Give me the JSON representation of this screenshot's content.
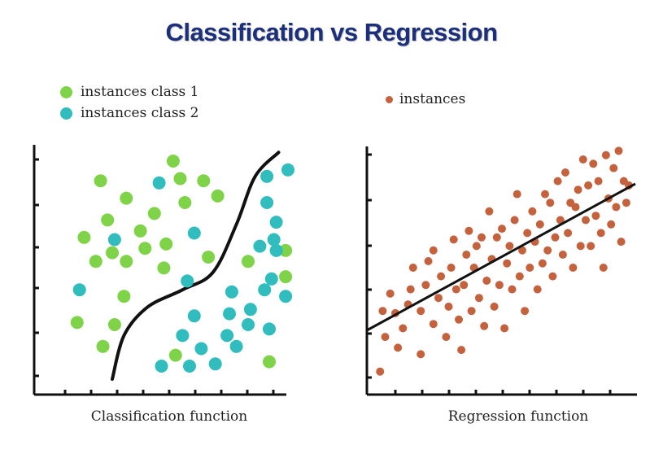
{
  "page": {
    "title": "Classification vs Regression"
  },
  "colors": {
    "class1": "#7ed348",
    "class2": "#31bdbd",
    "instances": "#c4623e",
    "title": "#1c2f7a",
    "axis": "#111111"
  },
  "chart_data": [
    {
      "type": "scatter",
      "xlabel": "Classification function",
      "xlim": [
        0,
        100
      ],
      "ylim": [
        0,
        100
      ],
      "legend_position": "top-left",
      "legend": [
        {
          "label": "instances class 1",
          "color": "#7ed348"
        },
        {
          "label": "instances class 2",
          "color": "#31bdbd"
        }
      ],
      "series": [
        {
          "name": "instances class 1",
          "color": "#7ed348",
          "points": [
            [
              51,
              97
            ],
            [
              20,
              88
            ],
            [
              54,
              89
            ],
            [
              64,
              88
            ],
            [
              31,
              80
            ],
            [
              56,
              78
            ],
            [
              70,
              81
            ],
            [
              43,
              73
            ],
            [
              23,
              70
            ],
            [
              37,
              65
            ],
            [
              13,
              62
            ],
            [
              48,
              59
            ],
            [
              39,
              57
            ],
            [
              25,
              55
            ],
            [
              66,
              53
            ],
            [
              18,
              51
            ],
            [
              31,
              51
            ],
            [
              47,
              48
            ],
            [
              83,
              51
            ],
            [
              99,
              56
            ],
            [
              99,
              44
            ],
            [
              30,
              35
            ],
            [
              26,
              22
            ],
            [
              10,
              23
            ],
            [
              21,
              12
            ],
            [
              52,
              8
            ],
            [
              92,
              5
            ]
          ]
        },
        {
          "name": "instances class 2",
          "color": "#31bdbd",
          "points": [
            [
              45,
              87
            ],
            [
              91,
              90
            ],
            [
              100,
              93
            ],
            [
              91,
              78
            ],
            [
              95,
              69
            ],
            [
              60,
              64
            ],
            [
              94,
              61
            ],
            [
              88,
              58
            ],
            [
              95,
              56
            ],
            [
              26,
              61
            ],
            [
              57,
              42
            ],
            [
              93,
              43
            ],
            [
              11,
              38
            ],
            [
              76,
              37
            ],
            [
              90,
              38
            ],
            [
              99,
              35
            ],
            [
              75,
              27
            ],
            [
              84,
              29
            ],
            [
              60,
              26
            ],
            [
              83,
              22
            ],
            [
              55,
              17
            ],
            [
              74,
              17
            ],
            [
              92,
              20
            ],
            [
              63,
              11
            ],
            [
              78,
              12
            ],
            [
              46,
              3
            ],
            [
              58,
              3
            ],
            [
              69,
              4
            ]
          ]
        }
      ],
      "boundary": [
        [
          25,
          -3
        ],
        [
          30,
          17
        ],
        [
          40,
          30
        ],
        [
          55,
          38
        ],
        [
          68,
          46
        ],
        [
          78,
          68
        ],
        [
          86,
          90
        ],
        [
          96,
          101
        ]
      ]
    },
    {
      "type": "scatter",
      "xlabel": "Regression function",
      "xlim": [
        0,
        100
      ],
      "ylim": [
        0,
        100
      ],
      "legend_position": "top-left",
      "legend": [
        {
          "label": "instances",
          "color": "#c4623e"
        }
      ],
      "series": [
        {
          "name": "instances",
          "color": "#c4623e",
          "points": [
            [
              2,
              2
            ],
            [
              4,
              18
            ],
            [
              3,
              30
            ],
            [
              6,
              38
            ],
            [
              8,
              29
            ],
            [
              9,
              13
            ],
            [
              11,
              22
            ],
            [
              13,
              33
            ],
            [
              14,
              40
            ],
            [
              15,
              50
            ],
            [
              18,
              10
            ],
            [
              18,
              30
            ],
            [
              20,
              42
            ],
            [
              21,
              53
            ],
            [
              23,
              58
            ],
            [
              23,
              24
            ],
            [
              25,
              36
            ],
            [
              26,
              46
            ],
            [
              28,
              18
            ],
            [
              29,
              32
            ],
            [
              30,
              50
            ],
            [
              31,
              63
            ],
            [
              32,
              40
            ],
            [
              33,
              26
            ],
            [
              34,
              12
            ],
            [
              35,
              42
            ],
            [
              36,
              56
            ],
            [
              37,
              67
            ],
            [
              38,
              30
            ],
            [
              39,
              50
            ],
            [
              40,
              60
            ],
            [
              41,
              36
            ],
            [
              42,
              64
            ],
            [
              43,
              23
            ],
            [
              44,
              44
            ],
            [
              45,
              76
            ],
            [
              46,
              54
            ],
            [
              47,
              32
            ],
            [
              48,
              64
            ],
            [
              49,
              42
            ],
            [
              50,
              68
            ],
            [
              51,
              22
            ],
            [
              52,
              52
            ],
            [
              53,
              60
            ],
            [
              54,
              40
            ],
            [
              55,
              72
            ],
            [
              56,
              84
            ],
            [
              57,
              46
            ],
            [
              58,
              58
            ],
            [
              59,
              30
            ],
            [
              60,
              66
            ],
            [
              61,
              50
            ],
            [
              62,
              76
            ],
            [
              63,
              62
            ],
            [
              64,
              40
            ],
            [
              65,
              70
            ],
            [
              66,
              52
            ],
            [
              67,
              84
            ],
            [
              68,
              58
            ],
            [
              69,
              80
            ],
            [
              70,
              46
            ],
            [
              71,
              64
            ],
            [
              72,
              90
            ],
            [
              73,
              72
            ],
            [
              74,
              56
            ],
            [
              75,
              94
            ],
            [
              76,
              66
            ],
            [
              77,
              80
            ],
            [
              78,
              50
            ],
            [
              79,
              78
            ],
            [
              80,
              86
            ],
            [
              81,
              60
            ],
            [
              82,
              100
            ],
            [
              83,
              72
            ],
            [
              84,
              88
            ],
            [
              85,
              60
            ],
            [
              86,
              98
            ],
            [
              87,
              74
            ],
            [
              88,
              90
            ],
            [
              89,
              66
            ],
            [
              90,
              50
            ],
            [
              91,
              102
            ],
            [
              92,
              82
            ],
            [
              93,
              70
            ],
            [
              94,
              96
            ],
            [
              95,
              78
            ],
            [
              96,
              104
            ],
            [
              97,
              62
            ],
            [
              98,
              90
            ],
            [
              99,
              80
            ],
            [
              100,
              88
            ]
          ]
        }
      ],
      "trendline": [
        [
          0,
          22
        ],
        [
          100,
          88
        ]
      ]
    }
  ]
}
